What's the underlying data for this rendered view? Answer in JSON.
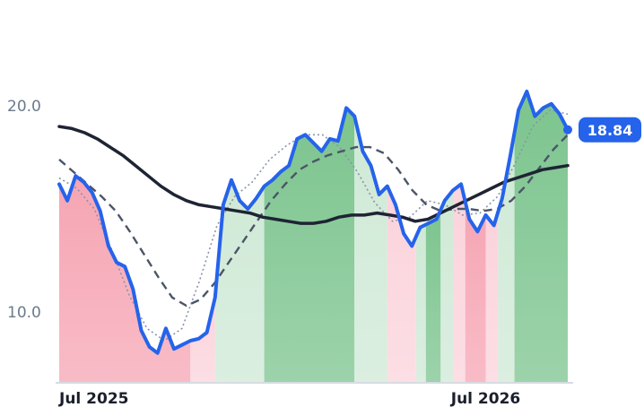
{
  "chart_data": {
    "type": "line",
    "title": "",
    "xlabel": "",
    "ylabel": "",
    "x_tick_labels": [
      {
        "label": "Jul 2025",
        "index": 0
      },
      {
        "label": "Jul 2026",
        "index": 52
      }
    ],
    "y_ticks": [
      {
        "label": "20.0",
        "value": 20.0
      },
      {
        "label": "10.0",
        "value": 10.0
      }
    ],
    "ylim": [
      6.6,
      23.4
    ],
    "last_value_label": "18.84",
    "colors": {
      "price": "#2563eb",
      "long_ma": "#1e2433",
      "mid_ma": "#4b5568",
      "short_ma": "#8a94a6",
      "up_strong": "#7cc48e",
      "up_weak": "#cfe9d6",
      "down_strong": "#f6a5b4",
      "down_weak": "#fbd3dc",
      "badge": "#2563eb",
      "axis": "#d7dbe2"
    },
    "series": [
      {
        "role": "price",
        "values": [
          16.2,
          15.4,
          16.6,
          16.3,
          15.8,
          14.9,
          13.2,
          12.4,
          12.2,
          11.1,
          9.1,
          8.3,
          8.0,
          9.2,
          8.2,
          8.4,
          8.6,
          8.7,
          9.0,
          10.7,
          15.2,
          16.4,
          15.4,
          15.0,
          15.5,
          16.1,
          16.4,
          16.8,
          17.1,
          18.4,
          18.6,
          18.2,
          17.8,
          18.4,
          18.3,
          19.9,
          19.5,
          17.8,
          17.1,
          15.7,
          16.1,
          15.2,
          13.8,
          13.2,
          14.1,
          14.3,
          14.5,
          15.4,
          15.9,
          16.2,
          14.5,
          13.9,
          14.7,
          14.2,
          15.5,
          17.6,
          19.8,
          20.7,
          19.5,
          19.9,
          20.1,
          19.6,
          18.84
        ],
        "volatility_note": ""
      },
      {
        "role": "long_ma",
        "values": [
          19.0,
          18.9,
          18.7,
          18.4,
          18.0,
          17.6,
          17.1,
          16.6,
          16.1,
          15.7,
          15.4,
          15.2,
          15.1,
          15.0,
          14.9,
          14.8,
          14.6,
          14.5,
          14.4,
          14.3,
          14.3,
          14.4,
          14.6,
          14.7,
          14.7,
          14.8,
          14.7,
          14.6,
          14.4,
          14.5,
          14.8,
          15.1,
          15.4,
          15.7,
          16.0,
          16.3,
          16.5,
          16.7,
          16.9,
          17.0,
          17.1
        ]
      },
      {
        "role": "mid_ma",
        "values": [
          17.4,
          16.8,
          16.2,
          15.6,
          14.9,
          13.9,
          12.8,
          11.7,
          10.7,
          10.3,
          10.6,
          11.4,
          12.4,
          13.4,
          14.4,
          15.4,
          16.2,
          16.9,
          17.3,
          17.6,
          17.8,
          18.0,
          18.0,
          17.7,
          16.9,
          15.9,
          15.2,
          14.9,
          15.0,
          15.0,
          14.9,
          15.0,
          15.4,
          16.1,
          17.0,
          17.9,
          18.6
        ]
      },
      {
        "role": "short_ma",
        "values": [
          16.5,
          16.0,
          15.0,
          13.0,
          10.8,
          9.2,
          8.6,
          9.2,
          11.5,
          14.2,
          15.6,
          16.3,
          17.4,
          18.1,
          18.6,
          18.6,
          18.0,
          16.8,
          15.3,
          14.4,
          14.6,
          15.4,
          15.2,
          14.7,
          14.8,
          15.6,
          17.2,
          19.0,
          19.8,
          19.6
        ]
      }
    ],
    "shading_segments": [
      {
        "from": 0.0,
        "to": 16.0,
        "state": "down_strong"
      },
      {
        "from": 16.0,
        "to": 19.0,
        "state": "down_weak"
      },
      {
        "from": 19.0,
        "to": 25.0,
        "state": "up_weak"
      },
      {
        "from": 25.0,
        "to": 36.0,
        "state": "up_strong"
      },
      {
        "from": 36.0,
        "to": 40.0,
        "state": "up_weak"
      },
      {
        "from": 40.0,
        "to": 43.5,
        "state": "down_weak"
      },
      {
        "from": 43.5,
        "to": 44.7,
        "state": "up_weak"
      },
      {
        "from": 44.7,
        "to": 46.5,
        "state": "up_strong"
      },
      {
        "from": 46.5,
        "to": 48.0,
        "state": "up_weak"
      },
      {
        "from": 48.0,
        "to": 49.5,
        "state": "down_weak"
      },
      {
        "from": 49.5,
        "to": 52.0,
        "state": "down_strong"
      },
      {
        "from": 52.0,
        "to": 53.5,
        "state": "down_weak"
      },
      {
        "from": 53.5,
        "to": 55.5,
        "state": "up_weak"
      },
      {
        "from": 55.5,
        "to": 62.0,
        "state": "up_strong"
      }
    ]
  }
}
